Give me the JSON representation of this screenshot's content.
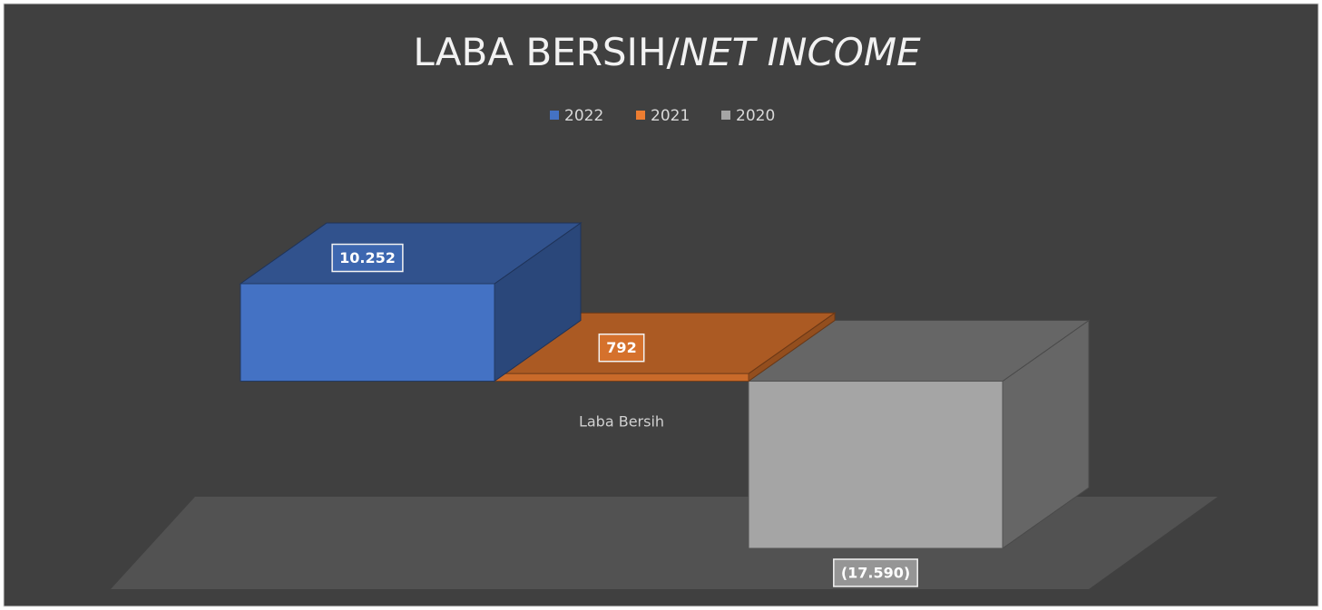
{
  "chart_data": {
    "type": "bar3d",
    "title": "LABA BERSIH/NET INCOME",
    "categories": [
      "Laba Bersih"
    ],
    "series": [
      {
        "name": "2022",
        "color": "#4472c4",
        "values": [
          10252
        ],
        "value_labels": [
          "10.252"
        ]
      },
      {
        "name": "2021",
        "color": "#ed7d31",
        "values": [
          792
        ],
        "value_labels": [
          "792"
        ]
      },
      {
        "name": "2020",
        "color": "#a5a5a5",
        "values": [
          -17590
        ],
        "value_labels": [
          "(17.590)"
        ]
      }
    ],
    "legend": "top"
  }
}
